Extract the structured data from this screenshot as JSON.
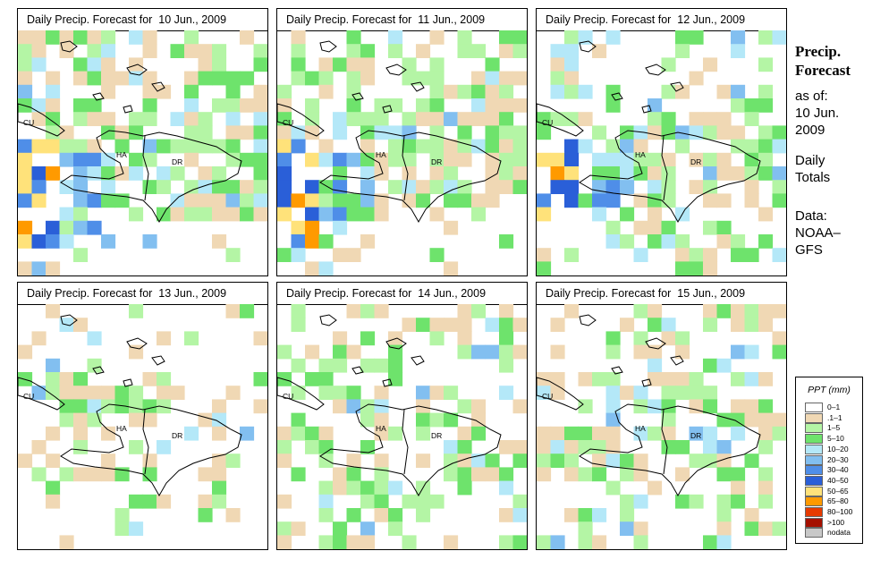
{
  "panels": [
    {
      "title": "Daily Precip. Forecast for  10 Jun., 2009"
    },
    {
      "title": "Daily Precip. Forecast for  11 Jun., 2009"
    },
    {
      "title": "Daily Precip. Forecast for  12 Jun., 2009"
    },
    {
      "title": "Daily Precip. Forecast for  13 Jun., 2009"
    },
    {
      "title": "Daily Precip. Forecast for  14 Jun., 2009"
    },
    {
      "title": "Daily Precip. Forecast for  15 Jun., 2009"
    }
  ],
  "map_labels": {
    "cuba": "CU",
    "haiti": "HA",
    "dominican_republic": "DR"
  },
  "sidebar": {
    "title_line1": "Precip.",
    "title_line2": "Forecast",
    "asof": "as of:",
    "date_line1": "10 Jun.",
    "date_line2": "2009",
    "daily_line1": "Daily",
    "daily_line2": "Totals",
    "data_line1": "Data:",
    "data_line2": "NOAA–",
    "data_line3": "GFS"
  },
  "legend": {
    "title": "PPT (mm)",
    "items": [
      {
        "label": "0–1",
        "color": "#ffffff"
      },
      {
        "label": ".1–1",
        "color": "#f0d8b4"
      },
      {
        "label": "1–5",
        "color": "#b4f5a5"
      },
      {
        "label": "5–10",
        "color": "#6ee36c"
      },
      {
        "label": "10–20",
        "color": "#b4e8f8"
      },
      {
        "label": "20–30",
        "color": "#82bff0"
      },
      {
        "label": "30–40",
        "color": "#4f8ee8"
      },
      {
        "label": "40–50",
        "color": "#2a5fd8"
      },
      {
        "label": "50–65",
        "color": "#ffe27a"
      },
      {
        "label": "65–80",
        "color": "#ff9a00"
      },
      {
        "label": "80–100",
        "color": "#e63a00"
      },
      {
        "label": ">100",
        "color": "#a51000"
      },
      {
        "label": "nodata",
        "color": "#c8c8c8"
      }
    ]
  }
}
